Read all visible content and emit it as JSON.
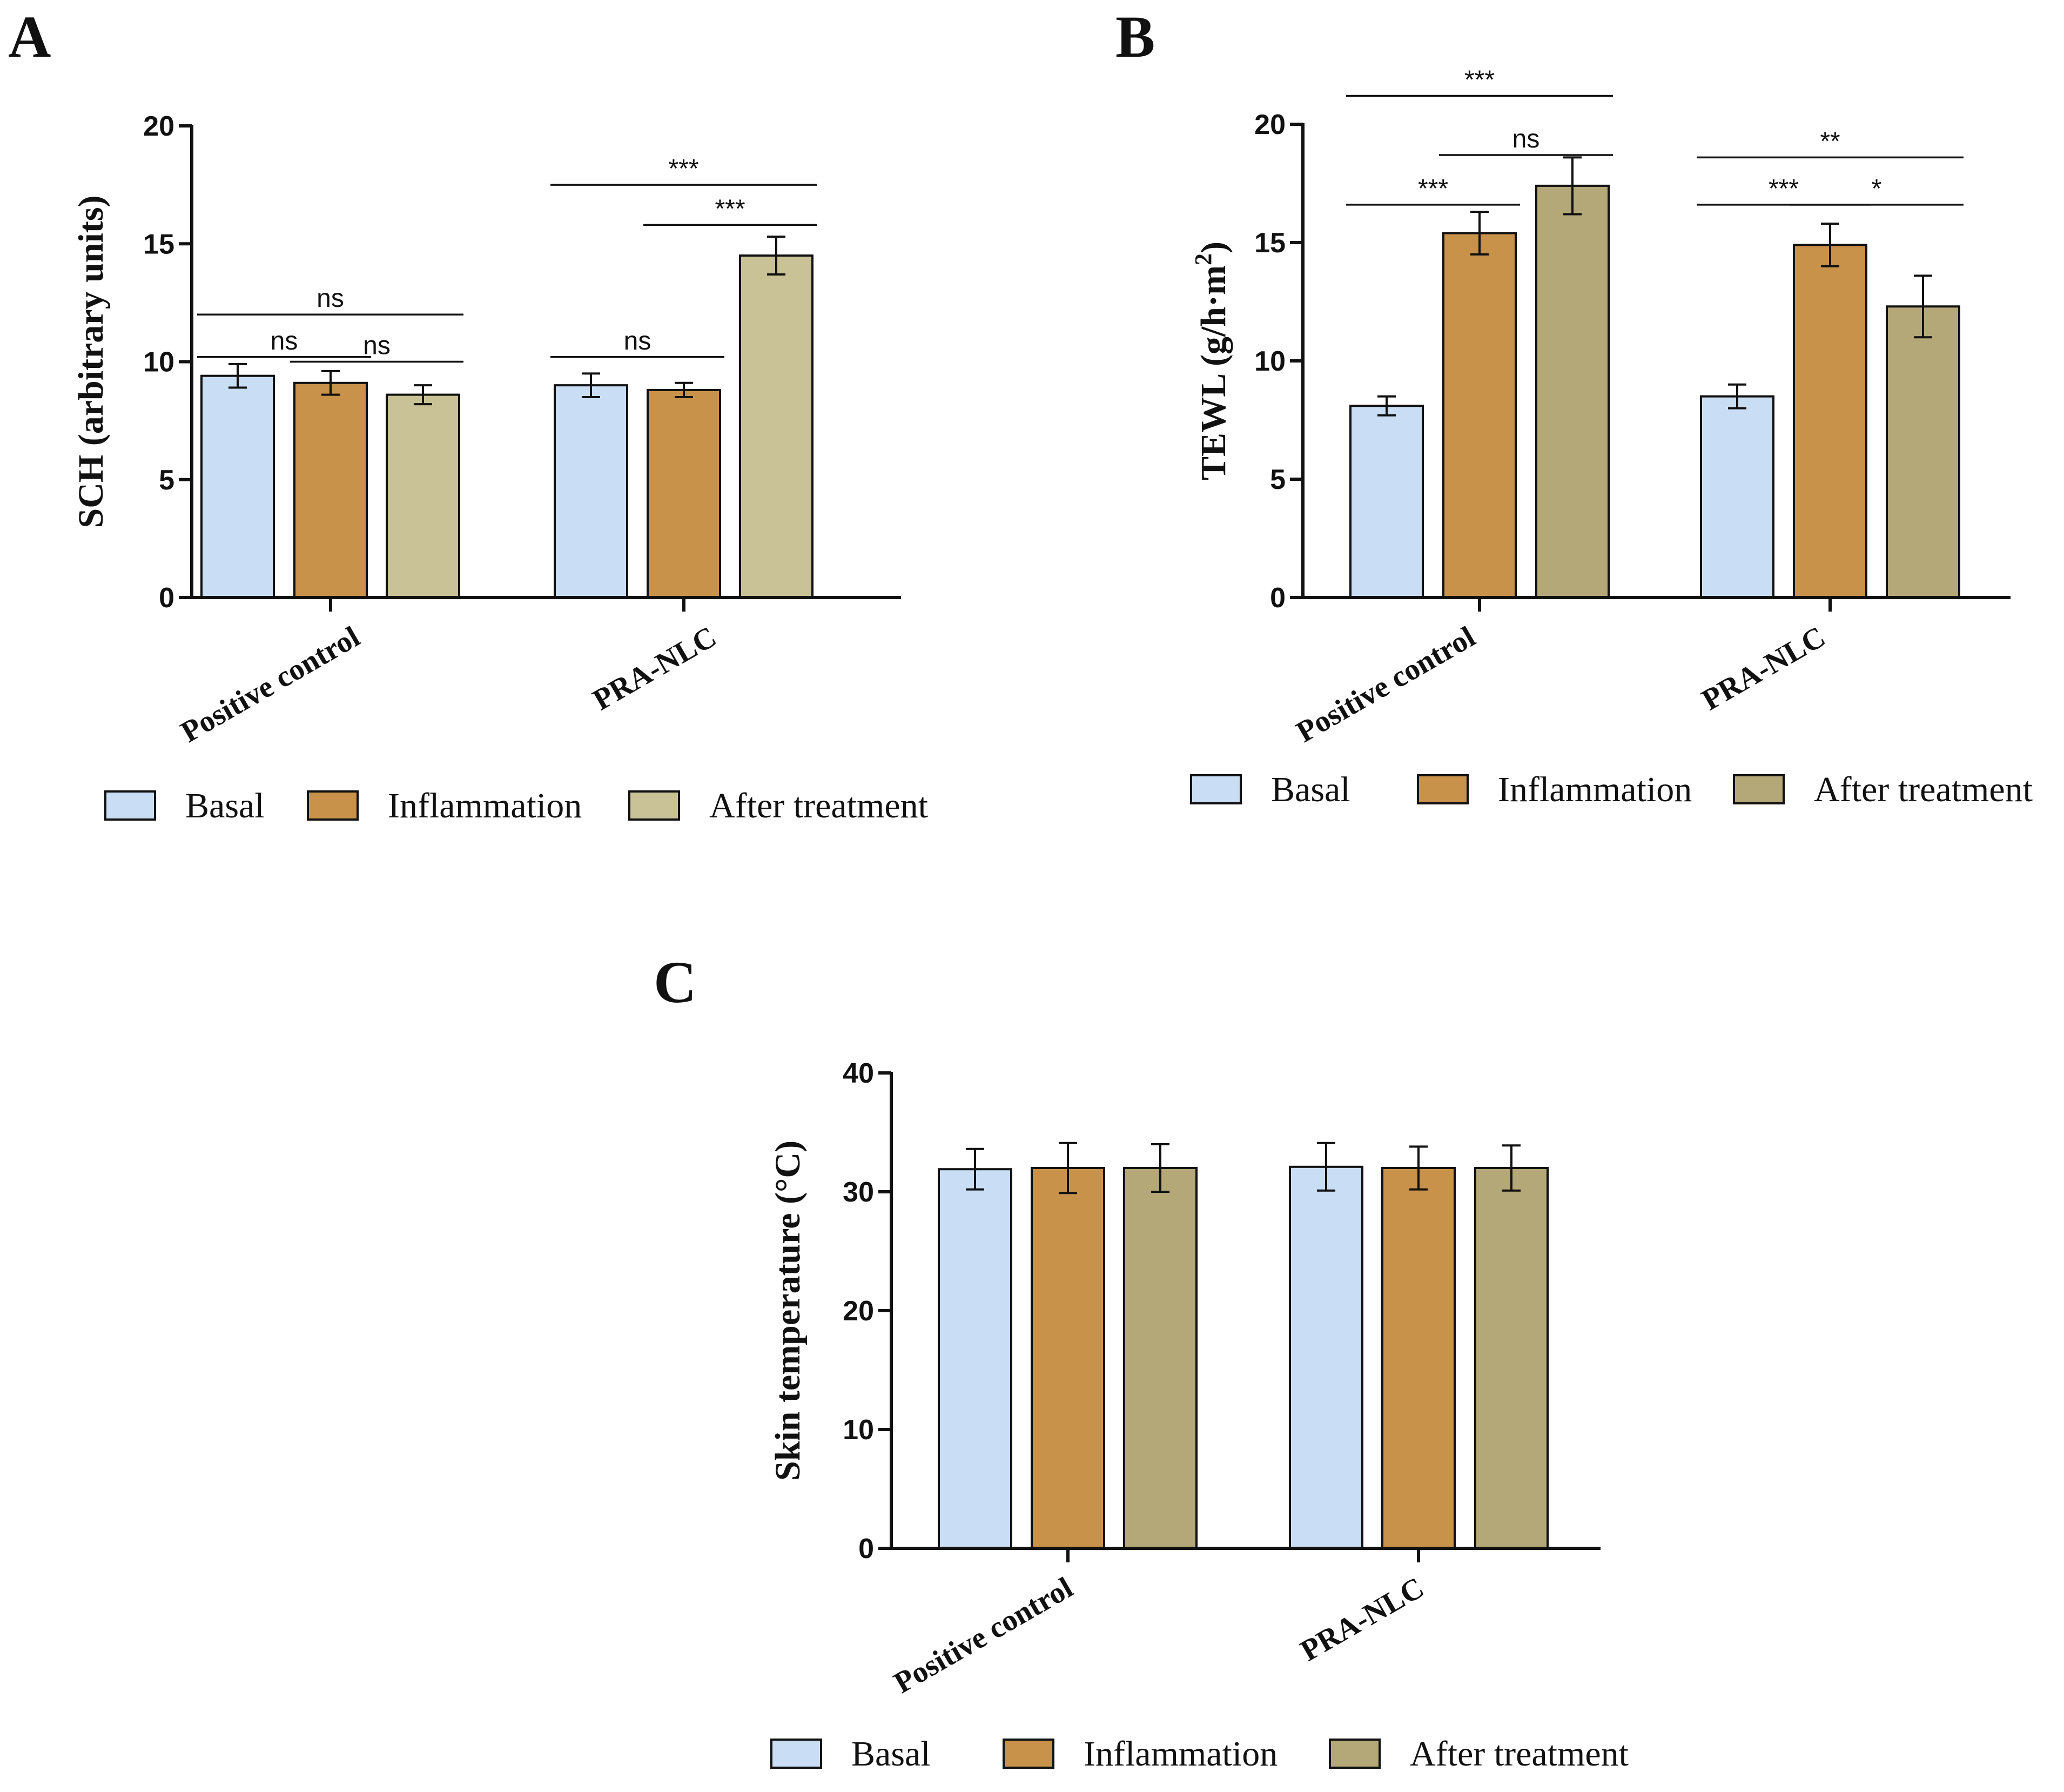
{
  "chart_data": [
    {
      "type": "bar",
      "panel": "A",
      "ylabel": "SCH (arbitrary units)",
      "ylim": [
        0,
        20
      ],
      "yticks": [
        "0",
        "5",
        "10",
        "15",
        "20"
      ],
      "categories": [
        "Positive control",
        "PRA-NLC"
      ],
      "series": [
        {
          "name": "Basal",
          "color": "#c9ddf4",
          "values": [
            9.4,
            9.0
          ],
          "errors": [
            0.5,
            0.5
          ]
        },
        {
          "name": "Inflammation",
          "color": "#c8924a",
          "values": [
            9.1,
            8.8
          ],
          "errors": [
            0.5,
            0.3
          ]
        },
        {
          "name": "After treatment",
          "color": "#c8c296",
          "values": [
            8.6,
            14.5
          ],
          "errors": [
            0.4,
            0.8
          ]
        }
      ],
      "significance": [
        {
          "group": 0,
          "from": 0,
          "to": 2,
          "label": "ns",
          "y": 12.0
        },
        {
          "group": 0,
          "from": 0,
          "to": 1,
          "label": "ns",
          "y": 10.2
        },
        {
          "group": 0,
          "from": 1,
          "to": 2,
          "label": "ns",
          "y": 10.0
        },
        {
          "group": 1,
          "from": 0,
          "to": 2,
          "label": "***",
          "y": 17.5
        },
        {
          "group": 1,
          "from": 1,
          "to": 2,
          "label": "***",
          "y": 15.8
        },
        {
          "group": 1,
          "from": 0,
          "to": 1,
          "label": "ns",
          "y": 10.2
        }
      ],
      "legend": [
        "Basal",
        "Inflammation",
        "After treatment"
      ],
      "grid": false
    },
    {
      "type": "bar",
      "panel": "B",
      "ylabel": "TEWL (g/h·m",
      "ylabel_sup": "2",
      "ylabel_end": ")",
      "ylim": [
        0,
        20
      ],
      "yticks": [
        "0",
        "5",
        "10",
        "15",
        "20"
      ],
      "categories": [
        "Positive control",
        "PRA-NLC"
      ],
      "series": [
        {
          "name": "Basal",
          "color": "#c9ddf4",
          "values": [
            8.1,
            8.5
          ],
          "errors": [
            0.4,
            0.5
          ]
        },
        {
          "name": "Inflammation",
          "color": "#c8924a",
          "values": [
            15.4,
            14.9
          ],
          "errors": [
            0.9,
            0.9
          ]
        },
        {
          "name": "After treatment",
          "color": "#b4a878",
          "values": [
            17.4,
            12.3
          ],
          "errors": [
            1.2,
            1.3
          ]
        }
      ],
      "significance": [
        {
          "group": 0,
          "from": 0,
          "to": 2,
          "label": "***",
          "y": 21.2
        },
        {
          "group": 0,
          "from": 1,
          "to": 2,
          "label": "ns",
          "y": 18.7
        },
        {
          "group": 0,
          "from": 0,
          "to": 1,
          "label": "***",
          "y": 16.6
        },
        {
          "group": 1,
          "from": 0,
          "to": 2,
          "label": "**",
          "y": 18.6
        },
        {
          "group": 1,
          "from": 0,
          "to": 1,
          "label": "***",
          "y": 16.6
        },
        {
          "group": 1,
          "from": 1,
          "to": 2,
          "label": "*",
          "y": 16.6
        }
      ],
      "legend": [
        "Basal",
        "Inflammation",
        "After treatment"
      ],
      "grid": false
    },
    {
      "type": "bar",
      "panel": "C",
      "ylabel": "Skin temperature (°C)",
      "ylim": [
        0,
        40
      ],
      "yticks": [
        "0",
        "10",
        "20",
        "30",
        "40"
      ],
      "categories": [
        "Positive control",
        "PRA-NLC"
      ],
      "series": [
        {
          "name": "Basal",
          "color": "#c9ddf4",
          "values": [
            31.9,
            32.1
          ],
          "errors": [
            1.7,
            2.0
          ]
        },
        {
          "name": "Inflammation",
          "color": "#c8924a",
          "values": [
            32.0,
            32.0
          ],
          "errors": [
            2.1,
            1.8
          ]
        },
        {
          "name": "After treatment",
          "color": "#b4a878",
          "values": [
            32.0,
            32.0
          ],
          "errors": [
            2.0,
            1.9
          ]
        }
      ],
      "significance": [],
      "legend": [
        "Basal",
        "Inflammation",
        "After treatment"
      ],
      "grid": false
    }
  ]
}
